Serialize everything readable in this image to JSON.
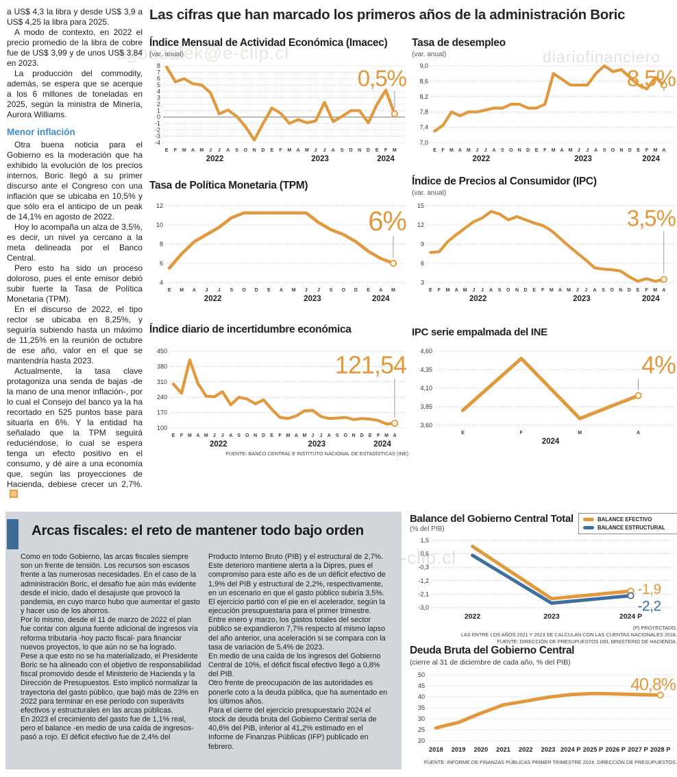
{
  "main_title": "Las cifras que han marcado los primeros años de la administración Boric",
  "colors": {
    "accent_orange": "#E2983C",
    "accent_blue": "#3E6F9E",
    "headline_bar_blue": "#3D6B94",
    "box_gray": "#d3d6db",
    "subhead_blue": "#3F8CCB"
  },
  "watermarks": {
    "top_left": "agonzalek@e-clip.cl",
    "top_right": "diariofinanciero",
    "middle": "ero#agonzalek@e-clip.cl"
  },
  "left_column": {
    "paragraphs": [
      "a US$ 4,3 la libra y desde US$ 3,9 a US$ 4,25 la libra para 2025.",
      "A modo de contexto, en 2022 el precio promedio de la libra de cobre fue de US$ 3,99 y de unos US$ 3,84 en 2023.",
      "La producción del commodity, además, se espera que se acerque a los 6 millones de toneladas en 2025, según la ministra de Minería, Aurora Williams."
    ],
    "subhead": "Menor inflación",
    "paragraphs2": [
      "Otra buena noticia para el Gobierno es la moderación que ha exhibido la evolución de los precios internos. Boric llegó a su primer discurso ante el Congreso con una inflación que se ubicaba en 10,5% y que sólo era el anticipo de un peak de 14,1% en agosto de 2022.",
      "Hoy lo acompaña un alza de 3,5%, es decir, un nivel ya cercano a la meta delineada por el Banco Central.",
      "Pero esto ha sido un proceso doloroso, pues el ente emisor debió subir fuerte la Tasa de Política Monetaria (TPM).",
      "En el discurso de 2022, el tipo rector se ubicaba en 8,25%, y seguiría subiendo hasta un máximo de 11,25% en la reunión de octubre de ese año, valor en el que se mantendría hasta 2023.",
      "Actualmente, la tasa clave protagoniza una senda de bajas -de la mano de una menor inflación-, por lo cual el Consejo del banco ya la ha recortado en 525 puntos base para situarla en 6%. Y la entidad ha señalado que la TPM seguirá reduciéndose, lo cual se espera tenga un efecto positivo en el consumo, y dé aire a una economía que, según las proyecciones de Hacienda, debiese crecer un 2,7%."
    ]
  },
  "fiscal_box": {
    "headline": "Arcas fiscales: el reto de mantener todo bajo orden",
    "col1": [
      "Como en todo Gobierno, las arcas fiscales siempre son un frente de tensión. Los recursos son escasos frente a las numerosas necesidades. En el caso de la administración Boric, el desafío fue aún más evidente desde el inicio, dado el desajuste que provocó la pandemia, en cuyo marco hubo que aumentar el gasto y hacer uso de los ahorros.",
      "Por lo mismo, desde el 11 de marzo de 2022 el plan fue contar con alguna fuente adicional de ingresos vía reforma tributaria -hoy pacto fiscal- para financiar nuevos proyectos, lo que aún no se ha logrado.",
      "Pese a que esto no se ha materializado, el Presidente Boric se ha alineado con el objetivo de responsabilidad fiscal promovido desde el Ministerio de Hacienda y la Dirección de Presupuestos. Esto implicó normalizar la trayectoria del gasto público, que bajó más de 23% en 2022 para terminar en ese período con superávits efectivos y estructurales en las arcas públicas.",
      "En 2023 el crecimiento del gasto fue de 1,1% real, pero el balance -en medio de una caída de ingresos-  pasó a rojo. El déficit efectivo fue de 2,4% del"
    ],
    "col2": [
      "Producto Interno Bruto (PIB) y el estructural de 2,7%. Este deterioro mantiene alerta a la Dipres, pues el compromiso para este año es de un déficit efectivo de 1,9% del PIB y estructural de 2,2%, respectivamente, en un escenario en que el gasto público subiría 3,5%.",
      "El ejercicio partió con el pie en el acelerador, según la ejecución presupuestaria para el primer trimestre. Entre enero y marzo, los gastos totales del sector público se expandieron 7,7% respecto al mismo lapso del año anterior, una aceleración si se compara con la tasa de variación de 5,4% de 2023.",
      "En medio de una caída de los ingresos del Gobierno Central de 10%, el déficit fiscal efectivo llegó a 0,8% del PIB.",
      "Otro frente de preocupación de las autoridades es ponerle coto a la deuda pública, que ha aumentado en los últimos años.",
      "Para el cierre del ejercicio presupuestario 2024 el stock de deuda bruta del Gobierno Central sería de 40,6% del PIB, inferior al 41,2% estimado en el Informe de Finanzas Públicas (IFP) publicado en febrero."
    ]
  },
  "chart_data": [
    {
      "id": "imacec",
      "type": "line",
      "title": "Índice Mensual de Actividad Económica (Imacec)",
      "subtitle": "(var. anual)",
      "ymin": -4,
      "ymax": 8,
      "yticks": [
        [
          8,
          "8"
        ],
        [
          7,
          "7"
        ],
        [
          6,
          "6"
        ],
        [
          5,
          "5"
        ],
        [
          4,
          "4"
        ],
        [
          3,
          "3"
        ],
        [
          2,
          "2"
        ],
        [
          1,
          "1"
        ],
        [
          0,
          "0"
        ],
        [
          -1,
          "-1"
        ],
        [
          -2,
          "-2"
        ],
        [
          -3,
          "-3"
        ],
        [
          -4,
          "-4"
        ]
      ],
      "xlabels": [
        "E",
        "F",
        "M",
        "A",
        "M",
        "J",
        "J",
        "A",
        "S",
        "O",
        "N",
        "D",
        "E",
        "F",
        "M",
        "A",
        "M",
        "J",
        "J",
        "A",
        "S",
        "O",
        "N",
        "D",
        "E",
        "F",
        "M"
      ],
      "years": [
        {
          "label": "2022",
          "from": 0,
          "to": 11
        },
        {
          "label": "2023",
          "from": 12,
          "to": 23
        },
        {
          "label": "2024",
          "from": 24,
          "to": 26
        }
      ],
      "series": [
        {
          "color": "#E2983C",
          "values": [
            7.8,
            5.5,
            6.0,
            5.2,
            5.0,
            3.8,
            0.5,
            1.1,
            0.1,
            -1.5,
            -3.6,
            -1.0,
            1.4,
            0.6,
            -1.0,
            -0.4,
            -0.9,
            -0.6,
            2.3,
            -0.7,
            0.1,
            1.0,
            1.0,
            -0.9,
            2.0,
            4.2,
            0.5
          ]
        }
      ],
      "callout": {
        "text": "0,5%",
        "color": "#E2983C"
      }
    },
    {
      "id": "desempleo",
      "type": "line",
      "title": "Tasa de desempleo",
      "subtitle": "(var. anual)",
      "ymin": 7.0,
      "ymax": 9.0,
      "yticks": [
        [
          9.0,
          "9,0"
        ],
        [
          8.6,
          "8,6"
        ],
        [
          8.2,
          "8,2"
        ],
        [
          7.8,
          "7,8"
        ],
        [
          7.4,
          "7,4"
        ],
        [
          7.0,
          "7,0"
        ]
      ],
      "xlabels": [
        "E",
        "F",
        "M",
        "A",
        "M",
        "J",
        "J",
        "A",
        "S",
        "O",
        "N",
        "D",
        "E",
        "F",
        "M",
        "A",
        "M",
        "J",
        "J",
        "A",
        "S",
        "O",
        "N",
        "D",
        "E",
        "F",
        "M",
        "A"
      ],
      "years": [
        {
          "label": "2022",
          "from": 0,
          "to": 11
        },
        {
          "label": "2023",
          "from": 12,
          "to": 23
        },
        {
          "label": "2024",
          "from": 24,
          "to": 27
        }
      ],
      "series": [
        {
          "color": "#E2983C",
          "values": [
            7.3,
            7.45,
            7.8,
            7.7,
            7.8,
            7.8,
            7.85,
            7.9,
            7.9,
            8.0,
            8.0,
            7.9,
            7.9,
            8.0,
            8.8,
            8.65,
            8.5,
            8.5,
            8.5,
            8.8,
            9.0,
            8.85,
            8.9,
            8.7,
            8.5,
            8.4,
            8.7,
            8.5
          ]
        }
      ],
      "callout": {
        "text": "8,5%",
        "color": "#E2983C"
      }
    },
    {
      "id": "tpm",
      "type": "line",
      "title": "Tasa de Política Monetaria (TPM)",
      "ymin": 4,
      "ymax": 12,
      "yticks": [
        [
          12,
          "12"
        ],
        [
          10,
          "10"
        ],
        [
          8,
          "8"
        ],
        [
          6,
          "6"
        ],
        [
          4,
          "4"
        ]
      ],
      "xlabels": [
        "E",
        "M",
        "A",
        "J",
        "J",
        "S",
        "O",
        "D",
        "E",
        "A",
        "M",
        "J",
        "J",
        "S",
        "O",
        "D",
        "E",
        "A",
        "M"
      ],
      "years": [
        {
          "label": "2022",
          "from": 0,
          "to": 7
        },
        {
          "label": "2023",
          "from": 8,
          "to": 15
        },
        {
          "label": "2024",
          "from": 16,
          "to": 18
        }
      ],
      "series": [
        {
          "color": "#E2983C",
          "values": [
            5.5,
            7.0,
            8.25,
            9.0,
            9.75,
            10.75,
            11.25,
            11.25,
            11.25,
            11.25,
            11.25,
            11.25,
            10.25,
            9.5,
            9.0,
            8.25,
            7.25,
            6.5,
            6.0
          ]
        }
      ],
      "callout": {
        "text": "6%",
        "color": "#E2983C"
      }
    },
    {
      "id": "ipc",
      "type": "line",
      "title": "Índice de Precios al Consumidor (IPC)",
      "subtitle": "(var. anual)",
      "ymin": 3,
      "ymax": 15,
      "yticks": [
        [
          15,
          "15"
        ],
        [
          12,
          "12"
        ],
        [
          9,
          "9"
        ],
        [
          6,
          "6"
        ],
        [
          3,
          "3"
        ]
      ],
      "xlabels": [
        "E",
        "F",
        "M",
        "A",
        "M",
        "J",
        "J",
        "A",
        "S",
        "O",
        "N",
        "D",
        "E",
        "F",
        "M",
        "A",
        "M",
        "J",
        "J",
        "A",
        "S",
        "O",
        "N",
        "D",
        "E",
        "F",
        "M",
        "A"
      ],
      "years": [
        {
          "label": "2022",
          "from": 0,
          "to": 11
        },
        {
          "label": "2023",
          "from": 12,
          "to": 23
        },
        {
          "label": "2024",
          "from": 24,
          "to": 27
        }
      ],
      "series": [
        {
          "color": "#E2983C",
          "values": [
            7.7,
            7.8,
            9.4,
            10.5,
            11.5,
            12.5,
            13.1,
            14.1,
            13.7,
            12.8,
            13.3,
            12.8,
            12.3,
            11.9,
            11.1,
            9.9,
            8.7,
            7.6,
            6.5,
            5.3,
            5.1,
            5.0,
            4.8,
            3.9,
            3.2,
            3.6,
            3.2,
            3.5
          ]
        }
      ],
      "callout": {
        "text": "3,5%",
        "color": "#E2983C"
      }
    },
    {
      "id": "incertidumbre",
      "type": "line",
      "title": "Índice diario de incertidumbre económica",
      "ymin": 100,
      "ymax": 450,
      "yticks": [
        [
          450,
          "450"
        ],
        [
          380,
          "380"
        ],
        [
          310,
          "310"
        ],
        [
          240,
          "240"
        ],
        [
          170,
          "170"
        ],
        [
          100,
          "100"
        ]
      ],
      "xlabels": [
        "E",
        "F",
        "M",
        "A",
        "M",
        "J",
        "J",
        "A",
        "S",
        "O",
        "N",
        "D",
        "E",
        "F",
        "M",
        "A",
        "M",
        "J",
        "J",
        "A",
        "S",
        "O",
        "N",
        "D",
        "E",
        "F",
        "M",
        "A"
      ],
      "years": [
        {
          "label": "2022",
          "from": 0,
          "to": 11
        },
        {
          "label": "2023",
          "from": 12,
          "to": 23
        },
        {
          "label": "2024",
          "from": 24,
          "to": 27
        }
      ],
      "series": [
        {
          "color": "#E2983C",
          "values": [
            300,
            258,
            410,
            302,
            245,
            242,
            265,
            205,
            240,
            232,
            210,
            228,
            185,
            148,
            143,
            155,
            178,
            180,
            152,
            143,
            145,
            148,
            138,
            143,
            140,
            134,
            118,
            121.54
          ]
        }
      ],
      "callout": {
        "text": "121,54",
        "color": "#E2983C"
      },
      "source": "FUENTE: BANCO CENTRAL E INSTITUTO NACIONAL DE ESTADÍSTICAS (INE)"
    },
    {
      "id": "ipc_ine",
      "type": "line",
      "title": "IPC serie empalmada del INE",
      "ymin": 3.6,
      "ymax": 4.6,
      "yticks": [
        [
          4.6,
          "4,60"
        ],
        [
          4.35,
          "4,35"
        ],
        [
          4.1,
          "4,10"
        ],
        [
          3.85,
          "3,85"
        ],
        [
          3.6,
          "3,60"
        ]
      ],
      "xlabels": [
        "E",
        "F",
        "M",
        "A"
      ],
      "years": [
        {
          "label": "2024",
          "from": 0,
          "to": 3
        }
      ],
      "series": [
        {
          "color": "#E2983C",
          "values": [
            3.8,
            4.5,
            3.69,
            4.0
          ]
        }
      ],
      "callout": {
        "text": "4%",
        "color": "#E2983C"
      }
    },
    {
      "id": "balance",
      "type": "line",
      "title": "Balance del Gobierno Central Total",
      "subtitle": "(% del PIB)",
      "ymin": -3.0,
      "ymax": 1.5,
      "yticks": [
        [
          1.5,
          "1,5"
        ],
        [
          0.6,
          "0,6"
        ],
        [
          -0.3,
          "-0,3"
        ],
        [
          -1.2,
          "-1,2"
        ],
        [
          -2.1,
          "-2,1"
        ],
        [
          -3.0,
          "-3,0"
        ]
      ],
      "xlabels": [
        "2022",
        "2023",
        "2024 P"
      ],
      "legend": [
        {
          "label": "BALANCE EFECTIVO",
          "color": "#E2983C"
        },
        {
          "label": "BALANCE ESTRUCTURAL",
          "color": "#3E6F9E"
        }
      ],
      "series": [
        {
          "name": "BALANCE EFECTIVO",
          "color": "#E2983C",
          "values": [
            1.1,
            -2.4,
            -1.9
          ],
          "end_label": "-1,9",
          "end_label_dy": 0
        },
        {
          "name": "BALANCE ESTRUCTURAL",
          "color": "#3E6F9E",
          "values": [
            0.5,
            -2.7,
            -2.2
          ],
          "end_label": "-2,2",
          "end_label_dy": 22
        }
      ],
      "footnotes": [
        "(P) PROYECTADO.",
        "LAS ENTRE LOS AÑOS 2021 Y 2023 SE CALCULAN  CON LAS CUENTAS NACIONALES 2018.",
        "FUENTE: DIRECCIÓN DE PRESUPUESTOS DEL MINISTERIO DE HACIENDA."
      ]
    },
    {
      "id": "deuda",
      "type": "line",
      "title": "Deuda Bruta del Gobierno Central",
      "subtitle": "(cierre al 31 de diciembre de cada año, % del PIB)",
      "ymin": 20,
      "ymax": 50,
      "yticks": [
        [
          50,
          "50"
        ],
        [
          45,
          "45"
        ],
        [
          40,
          "40"
        ],
        [
          35,
          "35"
        ],
        [
          30,
          "30"
        ],
        [
          25,
          "25"
        ],
        [
          20,
          "20"
        ]
      ],
      "xlabels": [
        "2018",
        "2019",
        "2020",
        "2021",
        "2022",
        "2023",
        "2024 P",
        "2025 P",
        "2026 P",
        "2027 P",
        "2028 P"
      ],
      "series": [
        {
          "color": "#E2983C",
          "values": [
            25.8,
            28.3,
            32.5,
            36.3,
            38.0,
            39.8,
            41.0,
            41.5,
            41.3,
            41.0,
            40.8
          ]
        }
      ],
      "callout": {
        "text": "40,8%",
        "color": "#E2983C"
      },
      "source": "FUENTE: INFORME DE FINANZAS PÚBLICAS PRIMER TRIMESTRE 2024, DIRECCIÓN DE PRESUPUESTOS."
    }
  ]
}
